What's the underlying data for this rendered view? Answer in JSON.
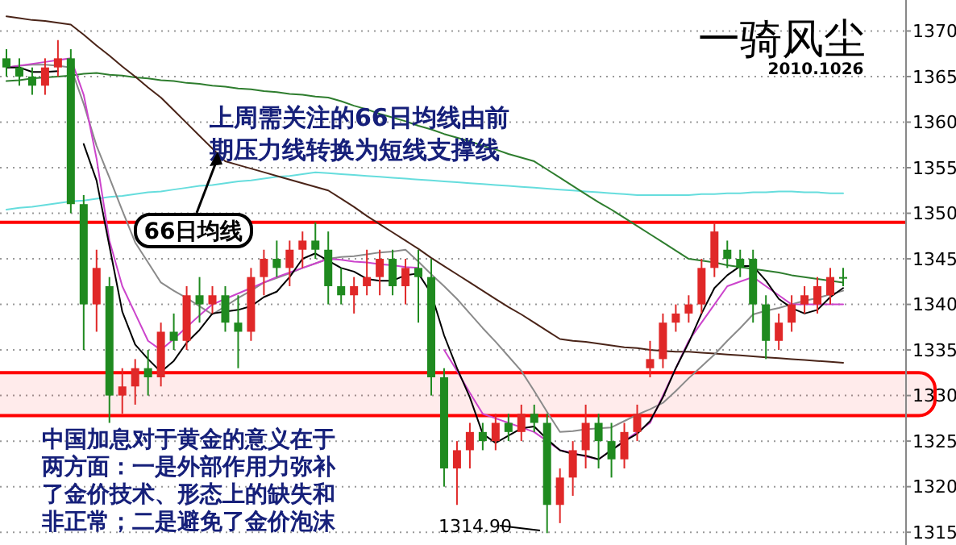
{
  "chart_data": {
    "type": "candlestick",
    "title": "一骑风尘",
    "subtitle": "2010.1026",
    "categories": [
      null,
      null,
      null,
      null,
      null,
      null,
      null,
      null,
      null,
      null,
      null,
      null,
      null,
      null,
      null,
      null,
      null,
      null,
      null,
      null,
      null,
      null,
      null,
      null,
      null,
      null,
      null,
      null,
      null,
      null,
      null,
      null,
      null,
      null,
      null,
      null,
      null,
      null,
      null,
      null,
      null,
      null,
      null,
      null,
      null,
      null,
      null,
      null,
      null,
      null,
      null,
      null,
      null,
      null,
      null,
      null,
      null,
      null,
      null,
      null,
      null,
      null,
      null,
      null,
      null,
      null
    ],
    "ohlc": [
      [
        1367,
        1368,
        1365,
        1366
      ],
      [
        1366,
        1367,
        1364,
        1365
      ],
      [
        1365,
        1366,
        1363,
        1364
      ],
      [
        1364,
        1367,
        1363,
        1366
      ],
      [
        1366,
        1369,
        1365,
        1367
      ],
      [
        1367,
        1368,
        1350,
        1351
      ],
      [
        1351,
        1352,
        1335,
        1340
      ],
      [
        1340,
        1346,
        1337,
        1344
      ],
      [
        1342,
        1343,
        1327,
        1330
      ],
      [
        1330,
        1333,
        1328,
        1331
      ],
      [
        1331,
        1334,
        1329,
        1333
      ],
      [
        1333,
        1335,
        1330,
        1332
      ],
      [
        1332,
        1338,
        1331,
        1337
      ],
      [
        1337,
        1339,
        1335,
        1336
      ],
      [
        1336,
        1342,
        1335,
        1341
      ],
      [
        1341,
        1343,
        1338,
        1340
      ],
      [
        1340,
        1342,
        1339,
        1341
      ],
      [
        1341,
        1342,
        1337,
        1338
      ],
      [
        1338,
        1341,
        1333,
        1337
      ],
      [
        1337,
        1344,
        1336,
        1343
      ],
      [
        1343,
        1346,
        1341,
        1345
      ],
      [
        1345,
        1347,
        1343,
        1344
      ],
      [
        1344,
        1347,
        1342,
        1346
      ],
      [
        1346,
        1348,
        1344,
        1347
      ],
      [
        1347,
        1349,
        1345,
        1346
      ],
      [
        1346,
        1348,
        1340,
        1342
      ],
      [
        1342,
        1344,
        1340,
        1341
      ],
      [
        1341,
        1343,
        1339,
        1342
      ],
      [
        1342,
        1346,
        1341,
        1343
      ],
      [
        1343,
        1346,
        1341,
        1345
      ],
      [
        1345,
        1346,
        1341,
        1342
      ],
      [
        1342,
        1345,
        1340,
        1344
      ],
      [
        1344,
        1346,
        1338,
        1343
      ],
      [
        1343,
        1345,
        1330,
        1332
      ],
      [
        1332,
        1333,
        1320,
        1322
      ],
      [
        1322,
        1325,
        1318,
        1324
      ],
      [
        1324,
        1327,
        1322,
        1326
      ],
      [
        1326,
        1327,
        1324,
        1325
      ],
      [
        1325,
        1328,
        1324,
        1327
      ],
      [
        1327,
        1328,
        1325,
        1326
      ],
      [
        1326,
        1329,
        1325,
        1328
      ],
      [
        1328,
        1329,
        1326,
        1327
      ],
      [
        1327,
        1328,
        1314.9,
        1318
      ],
      [
        1318,
        1322,
        1316,
        1321
      ],
      [
        1321,
        1325,
        1319,
        1324
      ],
      [
        1324,
        1329,
        1322,
        1327
      ],
      [
        1327,
        1328,
        1322,
        1325
      ],
      [
        1325,
        1327,
        1321,
        1323
      ],
      [
        1323,
        1327,
        1322,
        1326
      ],
      [
        1326,
        1329,
        1325,
        1328
      ],
      [
        1333,
        1336,
        1332,
        1334
      ],
      [
        1334,
        1339,
        1333,
        1338
      ],
      [
        1338,
        1340,
        1337,
        1339
      ],
      [
        1339,
        1341,
        1338,
        1340
      ],
      [
        1340,
        1345,
        1339,
        1344
      ],
      [
        1344,
        1349,
        1343,
        1348
      ],
      [
        1346,
        1347,
        1344,
        1345
      ],
      [
        1345,
        1346,
        1343,
        1344
      ],
      [
        1345,
        1346,
        1338,
        1340
      ],
      [
        1340,
        1341,
        1334,
        1336
      ],
      [
        1336,
        1339,
        1335,
        1338
      ],
      [
        1338,
        1341,
        1337,
        1340
      ],
      [
        1340,
        1342,
        1339,
        1341
      ],
      [
        1340,
        1343,
        1339,
        1342
      ],
      [
        1341,
        1344,
        1340,
        1343
      ],
      [
        1343,
        1344,
        1342,
        1343
      ]
    ],
    "colors": [
      "#1f8a1f",
      "#1f8a1f",
      "#1f8a1f",
      "#e02828",
      "#e02828",
      "#1f8a1f",
      "#1f8a1f",
      "#e02828",
      "#1f8a1f",
      "#e02828",
      "#e02828",
      "#1f8a1f",
      "#e02828",
      "#1f8a1f",
      "#e02828",
      "#1f8a1f",
      "#e02828",
      "#1f8a1f",
      "#1f8a1f",
      "#e02828",
      "#e02828",
      "#1f8a1f",
      "#e02828",
      "#e02828",
      "#1f8a1f",
      "#1f8a1f",
      "#1f8a1f",
      "#e02828",
      "#e02828",
      "#e02828",
      "#1f8a1f",
      "#e02828",
      "#1f8a1f",
      "#1f8a1f",
      "#1f8a1f",
      "#e02828",
      "#e02828",
      "#1f8a1f",
      "#e02828",
      "#1f8a1f",
      "#e02828",
      "#1f8a1f",
      "#1f8a1f",
      "#e02828",
      "#e02828",
      "#e02828",
      "#1f8a1f",
      "#1f8a1f",
      "#e02828",
      "#e02828",
      "#e02828",
      "#e02828",
      "#e02828",
      "#e02828",
      "#e02828",
      "#e02828",
      "#1f8a1f",
      "#1f8a1f",
      "#1f8a1f",
      "#1f8a1f",
      "#e02828",
      "#e02828",
      "#e02828",
      "#e02828",
      "#e02828",
      "#1f8a1f"
    ],
    "series": [
      {
        "type": "line",
        "color": "#66dddd",
        "values": [
          1350.4,
          1350.6,
          1350.7,
          1350.9,
          1351.1,
          1351.3,
          1351.4,
          1351.6,
          1351.8,
          1351.9,
          1352.1,
          1352.3,
          1352.4,
          1352.6,
          1352.8,
          1353.0,
          1353.1,
          1353.3,
          1353.5,
          1353.6,
          1353.8,
          1354.0,
          1354.1,
          1354.3,
          1354.5,
          1354.4,
          1354.3,
          1354.2,
          1354.1,
          1354.0,
          1353.9,
          1353.8,
          1353.7,
          1353.6,
          1353.5,
          1353.4,
          1353.3,
          1353.2,
          1353.1,
          1353.0,
          1352.9,
          1352.8,
          1352.7,
          1352.6,
          1352.5,
          1352.4,
          1352.3,
          1352.2,
          1352.1,
          1352.0,
          1352.0,
          1352.0,
          1352.0,
          1352.0,
          1352.1,
          1352.1,
          1352.2,
          1352.2,
          1352.3,
          1352.3,
          1352.4,
          1352.4,
          1352.3,
          1352.3,
          1352.2,
          1352.2
        ]
      },
      {
        "type": "line",
        "color": "#2e7d2e",
        "values": [
          1364.5,
          1364.6,
          1364.8,
          1364.9,
          1365.0,
          1365.1,
          1365.3,
          1365.4,
          1365.2,
          1365.1,
          1364.9,
          1364.8,
          1364.6,
          1364.5,
          1364.3,
          1364.2,
          1364.0,
          1363.9,
          1363.7,
          1363.6,
          1363.4,
          1363.3,
          1363.1,
          1363.0,
          1362.8,
          1362.7,
          1362.3,
          1361.8,
          1361.4,
          1360.9,
          1360.5,
          1360.1,
          1359.6,
          1359.2,
          1358.7,
          1358.3,
          1357.9,
          1357.4,
          1357.0,
          1356.5,
          1356.1,
          1355.7,
          1354.8,
          1353.9,
          1353.0,
          1352.1,
          1351.2,
          1350.4,
          1349.5,
          1348.6,
          1347.7,
          1346.8,
          1345.9,
          1345.0,
          1344.8,
          1344.6,
          1344.3,
          1344.1,
          1343.9,
          1343.7,
          1343.5,
          1343.2,
          1343.0,
          1342.8,
          1342.6,
          1342.4
        ]
      },
      {
        "type": "line",
        "color": "#4a2418",
        "values": [
          1371.6,
          1371.4,
          1371.2,
          1371.1,
          1370.9,
          1370.7,
          1369.6,
          1368.4,
          1367.3,
          1366.1,
          1365.0,
          1363.8,
          1362.7,
          1361.3,
          1359.9,
          1358.5,
          1357.1,
          1355.7,
          1355.3,
          1354.9,
          1354.5,
          1354.1,
          1353.7,
          1353.3,
          1352.9,
          1352.5,
          1351.6,
          1350.7,
          1349.7,
          1348.8,
          1347.9,
          1347.0,
          1346.1,
          1345.1,
          1344.2,
          1343.3,
          1342.4,
          1341.5,
          1340.6,
          1339.7,
          1338.9,
          1338.0,
          1337.1,
          1336.2,
          1336.0,
          1335.9,
          1335.7,
          1335.5,
          1335.3,
          1335.2,
          1335.0,
          1334.9,
          1334.8,
          1334.8,
          1334.7,
          1334.6,
          1334.5,
          1334.4,
          1334.3,
          1334.2,
          1334.1,
          1334.0,
          1333.9,
          1333.8,
          1333.7,
          1333.6
        ]
      },
      {
        "type": "line",
        "color": "#8a8a8a",
        "values": [
          1366,
          1366.2,
          1366.3,
          1366.3,
          1366.2,
          1366.0,
          1362.0,
          1357.4,
          1353.9,
          1350.3,
          1346.8,
          1344.6,
          1342.4,
          1341.5,
          1340.7,
          1339.8,
          1338.9,
          1339.8,
          1340.7,
          1341.5,
          1342.4,
          1342.9,
          1343.4,
          1344.0,
          1344.5,
          1345.0,
          1345.2,
          1345.3,
          1345.5,
          1345.7,
          1345.8,
          1346.0,
          1344.7,
          1343.3,
          1342.0,
          1340.6,
          1339.0,
          1337.4,
          1335.9,
          1334.3,
          1332.7,
          1330.5,
          1328.2,
          1326.0,
          1326.1,
          1326.3,
          1326.4,
          1326.5,
          1327.2,
          1327.9,
          1328.5,
          1329.2,
          1330.5,
          1331.9,
          1333.2,
          1334.5,
          1336.0,
          1337.4,
          1338.9,
          1339.3,
          1339.6,
          1340.0,
          1340.4,
          1340.7,
          1341.1,
          1341.5
        ]
      },
      {
        "type": "line",
        "color": "#cc44cc",
        "values": [
          1366,
          1366.2,
          1366.4,
          1366.6,
          1366.8,
          1367,
          1363,
          1356,
          1347,
          1342,
          1339,
          1336,
          1335,
          1336.2,
          1337.5,
          1338.8,
          1340,
          1340.6,
          1341.2,
          1341.8,
          1342.4,
          1343,
          1343.5,
          1344,
          1344.5,
          1345,
          1344.9,
          1344.7,
          1344.6,
          1344.4,
          1344.3,
          1344.1,
          1344,
          null,
          1335,
          1332.7,
          1330.3,
          1328,
          1327.5,
          1327,
          1326.5,
          1326,
          1325,
          1324,
          1323.7,
          1323.3,
          1323,
          1324,
          1325,
          1326,
          1327,
          1330,
          1333,
          1336,
          1338,
          1340,
          1342,
          1342.5,
          1343,
          1342,
          1341,
          1340,
          1340,
          1340,
          1340,
          1340
        ]
      },
      {
        "type": "line",
        "color": "#000000",
        "values": [
          1366,
          1366,
          1365.5,
          1365.5,
          1365.6,
          null,
          1357.6,
          1353.6,
          1346.4,
          1339.2,
          1335.6,
          1334,
          1332.6,
          1333.8,
          1335.8,
          1337.2,
          1339,
          1339.2,
          1339.4,
          1339.8,
          1340.8,
          1341.4,
          1343,
          1345,
          1345.6,
          1344.8,
          1344,
          1343.6,
          1342.8,
          1342.6,
          1342.6,
          1343.2,
          1343.4,
          1341.2,
          1336.6,
          1333,
          1329.8,
          1325.8,
          1324.8,
          1325.6,
          1326.4,
          1326.6,
          1325.2,
          1324,
          1323.6,
          1323.4,
          1323,
          1324,
          1325,
          1325.8,
          1327.2,
          1329.8,
          1333,
          1335.8,
          1339,
          1341.8,
          1343.2,
          1344.2,
          1344.2,
          1342.6,
          1340.6,
          1339.6,
          1339,
          1339.4,
          1340.8,
          1341.8
        ]
      }
    ],
    "ylim": [
      1313.6,
      1373.4
    ],
    "yticks": [
      1315,
      1320,
      1325,
      1330,
      1335,
      1340,
      1345,
      1350,
      1355,
      1360,
      1365,
      1370
    ],
    "grid": "y",
    "tick_labels": "y",
    "ref_lines": [
      {
        "axis": "y",
        "value": 1349,
        "color": "#ff0000"
      }
    ],
    "bands": [
      {
        "axis": "y",
        "from": 1327.8,
        "to": 1332.5,
        "color": "#ff0000"
      }
    ],
    "annotations": [
      "上周需关注的66日均线由前期压力线转换为短线支撑线",
      "66日均线",
      "中国加息对于黄金的意义在于两方面：一是外部作用力弥补了金价技术、形态上的缺失和非正常；二是避免了金价泡沫",
      "1314.90"
    ]
  }
}
